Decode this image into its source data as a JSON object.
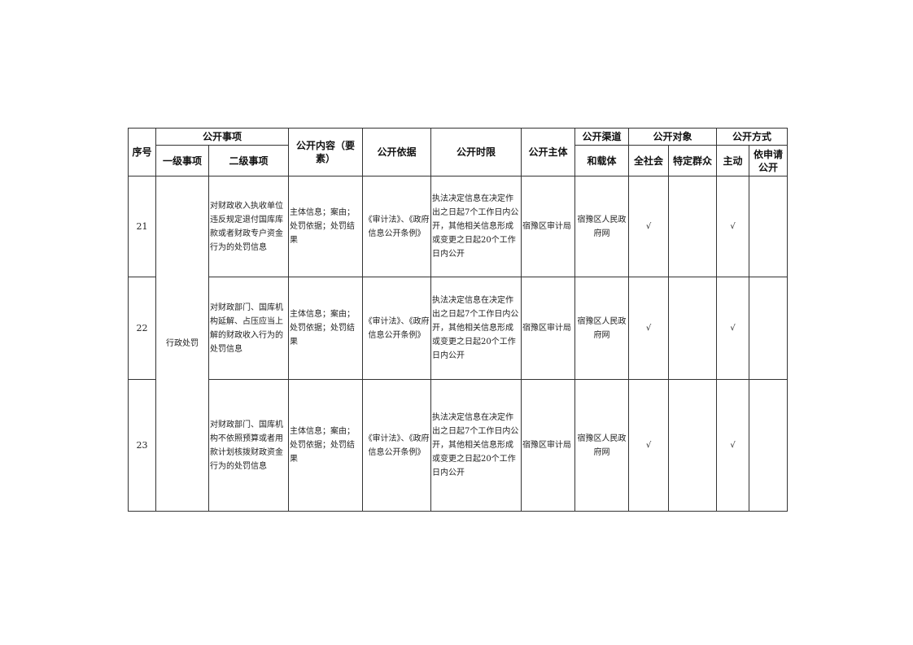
{
  "header": {
    "seq": "序号",
    "matter": "公开事项",
    "level1": "一级事项",
    "level2": "二级事项",
    "content": "公开内容（要素）",
    "basis": "公开依据",
    "time_limit": "公开时限",
    "subject": "公开主体",
    "channel_top": "公开渠道",
    "channel_bottom": "和载体",
    "audience": "公开对象",
    "audience_all": "全社会",
    "audience_specific": "特定群众",
    "method": "公开方式",
    "method_active": "主动",
    "method_request": "依申请公开"
  },
  "level1_value": "行政处罚",
  "rows": [
    {
      "seq": "21",
      "level2": "对财政收入执收单位违反规定退付国库库款或者财政专户资金行为的处罚信息",
      "content": "主体信息；案由；处罚依据；处罚结果",
      "basis": "《审计法》、《政府信息公开条例》",
      "time_limit": "执法决定信息在决定作出之日起7个工作日内公开，其他相关信息形成或变更之日起20个工作日内公开",
      "subject": "宿豫区审计局",
      "channel": "宿豫区人民政府网",
      "all": "√",
      "specific": "",
      "active": "√",
      "request": ""
    },
    {
      "seq": "22",
      "level2": "对财政部门、国库机构延解、占压应当上解的财政收入行为的处罚信息",
      "content": "主体信息；案由；处罚依据；处罚结果",
      "basis": "《审计法》、《政府信息公开条例》",
      "time_limit": "执法决定信息在决定作出之日起7个工作日内公开，其他相关信息形成或变更之日起20个工作日内公开",
      "subject": "宿豫区审计局",
      "channel": "宿豫区人民政府网",
      "all": "√",
      "specific": "",
      "active": "√",
      "request": ""
    },
    {
      "seq": "23",
      "level2": "对财政部门、国库机构不依照预算或者用款计划核拨财政资金行为的处罚信息",
      "content": "主体信息；案由；处罚依据；处罚结果",
      "basis": "《审计法》、《政府信息公开条例》",
      "time_limit": "执法决定信息在决定作出之日起7个工作日内公开，其他相关信息形成或变更之日起20个工作日内公开",
      "subject": "宿豫区审计局",
      "channel": "宿豫区人民政府网",
      "all": "√",
      "specific": "",
      "active": "√",
      "request": ""
    }
  ]
}
